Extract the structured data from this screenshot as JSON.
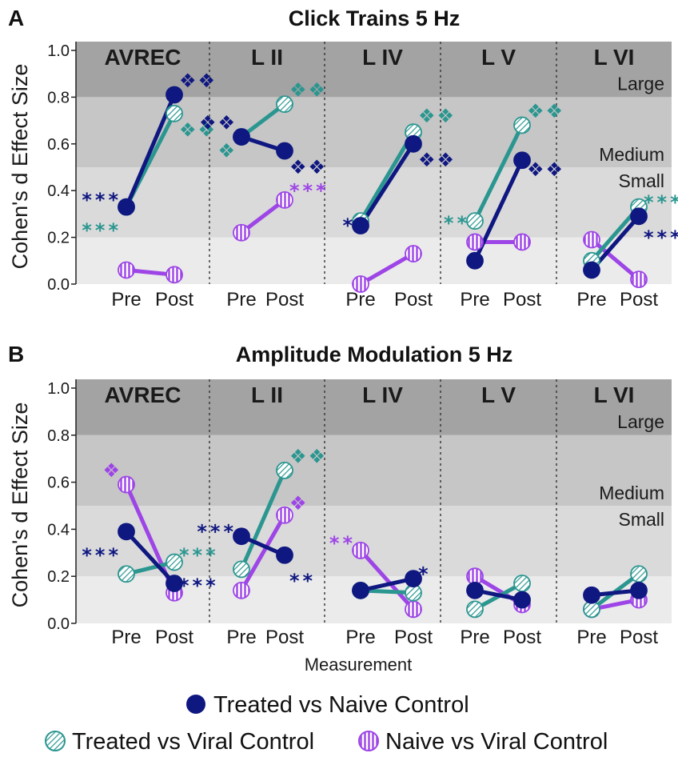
{
  "chart_data": [
    {
      "type": "line",
      "panel": "A",
      "title": "Click Trains 5 Hz",
      "ylabel": "Cohen's d Effect Size",
      "ylim": [
        0,
        1.0
      ],
      "yticks": [
        "0.0",
        "0.2",
        "0.4",
        "0.6",
        "0.8",
        "1.0"
      ],
      "x_categories": [
        "Pre",
        "Post"
      ],
      "bands": [
        {
          "label": "Large",
          "from": 0.8,
          "to": 1.05
        },
        {
          "label": "Medium",
          "from": 0.5,
          "to": 0.8
        },
        {
          "label": "Small",
          "from": 0.2,
          "to": 0.5
        }
      ],
      "groups": [
        {
          "label": "AVREC",
          "series": [
            {
              "name": "Treated vs Naive Control",
              "values": [
                0.33,
                0.81
              ]
            },
            {
              "name": "Treated vs Viral Control",
              "values": [
                0.33,
                0.73
              ]
            },
            {
              "name": "Naive vs Viral Control",
              "values": [
                0.06,
                0.04
              ]
            }
          ],
          "annotations": [
            {
              "text": "***",
              "series": 0,
              "at": "pre",
              "y": 0.38
            },
            {
              "text": "***",
              "series": 1,
              "at": "pre",
              "y": 0.25
            },
            {
              "text": "❖❖",
              "series": 0,
              "at": "post",
              "y": 0.87
            },
            {
              "text": "❖❖",
              "series": 1,
              "at": "post",
              "y": 0.66
            }
          ]
        },
        {
          "label": "L II",
          "series": [
            {
              "name": "Treated vs Naive Control",
              "values": [
                0.63,
                0.57
              ]
            },
            {
              "name": "Treated vs Viral Control",
              "values": [
                0.63,
                0.77
              ]
            },
            {
              "name": "Naive vs Viral Control",
              "values": [
                0.22,
                0.36
              ]
            }
          ],
          "annotations": [
            {
              "text": "❖❖",
              "series": 0,
              "at": "pre",
              "y": 0.69
            },
            {
              "text": "❖",
              "series": 1,
              "at": "pre",
              "y": 0.57
            },
            {
              "text": "❖❖",
              "series": 1,
              "at": "post",
              "y": 0.83
            },
            {
              "text": "❖❖",
              "series": 0,
              "at": "post",
              "y": 0.5
            },
            {
              "text": "***",
              "series": 2,
              "at": "post",
              "y": 0.42
            }
          ]
        },
        {
          "label": "L IV",
          "series": [
            {
              "name": "Treated vs Naive Control",
              "values": [
                0.25,
                0.6
              ]
            },
            {
              "name": "Treated vs Viral Control",
              "values": [
                0.27,
                0.65
              ]
            },
            {
              "name": "Naive vs Viral Control",
              "values": [
                0.0,
                0.13
              ]
            }
          ],
          "annotations": [
            {
              "text": "*",
              "series": 0,
              "at": "pre",
              "y": 0.27
            },
            {
              "text": "❖❖",
              "series": 1,
              "at": "post",
              "y": 0.72
            },
            {
              "text": "❖❖",
              "series": 0,
              "at": "post",
              "y": 0.53
            }
          ]
        },
        {
          "label": "L V",
          "series": [
            {
              "name": "Treated vs Naive Control",
              "values": [
                0.1,
                0.53
              ]
            },
            {
              "name": "Treated vs Viral Control",
              "values": [
                0.27,
                0.68
              ]
            },
            {
              "name": "Naive vs Viral Control",
              "values": [
                0.18,
                0.18
              ]
            }
          ],
          "annotations": [
            {
              "text": "**",
              "series": 1,
              "at": "pre",
              "y": 0.28
            },
            {
              "text": "❖❖",
              "series": 1,
              "at": "post",
              "y": 0.74
            },
            {
              "text": "❖❖",
              "series": 0,
              "at": "post",
              "y": 0.49
            }
          ]
        },
        {
          "label": "L VI",
          "series": [
            {
              "name": "Treated vs Naive Control",
              "values": [
                0.06,
                0.29
              ]
            },
            {
              "name": "Treated vs Viral Control",
              "values": [
                0.1,
                0.33
              ]
            },
            {
              "name": "Naive vs Viral Control",
              "values": [
                0.19,
                0.02
              ]
            }
          ],
          "annotations": [
            {
              "text": "***",
              "series": 1,
              "at": "post",
              "y": 0.37
            },
            {
              "text": "***",
              "series": 0,
              "at": "post",
              "y": 0.22
            }
          ]
        }
      ]
    },
    {
      "type": "line",
      "panel": "B",
      "title": "Amplitude Modulation 5 Hz",
      "ylabel": "Cohen's d Effect Size",
      "xlabel": "Measurement",
      "ylim": [
        0,
        1.0
      ],
      "yticks": [
        "0.0",
        "0.2",
        "0.4",
        "0.6",
        "0.8",
        "1.0"
      ],
      "x_categories": [
        "Pre",
        "Post"
      ],
      "bands": [
        {
          "label": "Large",
          "from": 0.8,
          "to": 1.05
        },
        {
          "label": "Medium",
          "from": 0.5,
          "to": 0.8
        },
        {
          "label": "Small",
          "from": 0.2,
          "to": 0.5
        }
      ],
      "groups": [
        {
          "label": "AVREC",
          "series": [
            {
              "name": "Treated vs Naive Control",
              "values": [
                0.39,
                0.17
              ]
            },
            {
              "name": "Treated vs Viral Control",
              "values": [
                0.21,
                0.26
              ]
            },
            {
              "name": "Naive vs Viral Control",
              "values": [
                0.59,
                0.13
              ]
            }
          ],
          "annotations": [
            {
              "text": "❖",
              "series": 2,
              "at": "pre",
              "y": 0.65
            },
            {
              "text": "***",
              "series": 0,
              "at": "pre",
              "y": 0.31
            },
            {
              "text": "***",
              "series": 1,
              "at": "post",
              "y": 0.31
            },
            {
              "text": "***",
              "series": 0,
              "at": "post",
              "y": 0.18
            }
          ]
        },
        {
          "label": "L II",
          "series": [
            {
              "name": "Treated vs Naive Control",
              "values": [
                0.37,
                0.29
              ]
            },
            {
              "name": "Treated vs Viral Control",
              "values": [
                0.23,
                0.65
              ]
            },
            {
              "name": "Naive vs Viral Control",
              "values": [
                0.14,
                0.46
              ]
            }
          ],
          "annotations": [
            {
              "text": "***",
              "series": 0,
              "at": "pre",
              "y": 0.41
            },
            {
              "text": "❖❖",
              "series": 1,
              "at": "post",
              "y": 0.71
            },
            {
              "text": "❖",
              "series": 2,
              "at": "post",
              "y": 0.51
            },
            {
              "text": "**",
              "series": 0,
              "at": "post",
              "y": 0.2
            }
          ]
        },
        {
          "label": "L IV",
          "series": [
            {
              "name": "Treated vs Naive Control",
              "values": [
                0.14,
                0.19
              ]
            },
            {
              "name": "Treated vs Viral Control",
              "values": [
                0.14,
                0.13
              ]
            },
            {
              "name": "Naive vs Viral Control",
              "values": [
                0.31,
                0.06
              ]
            }
          ],
          "annotations": [
            {
              "text": "**",
              "series": 2,
              "at": "pre",
              "y": 0.36
            },
            {
              "text": "*",
              "series": 0,
              "at": "post",
              "y": 0.23
            }
          ]
        },
        {
          "label": "L V",
          "series": [
            {
              "name": "Treated vs Naive Control",
              "values": [
                0.14,
                0.1
              ]
            },
            {
              "name": "Treated vs Viral Control",
              "values": [
                0.06,
                0.17
              ]
            },
            {
              "name": "Naive vs Viral Control",
              "values": [
                0.2,
                0.08
              ]
            }
          ],
          "annotations": []
        },
        {
          "label": "L VI",
          "series": [
            {
              "name": "Treated vs Naive Control",
              "values": [
                0.12,
                0.14
              ]
            },
            {
              "name": "Treated vs Viral Control",
              "values": [
                0.06,
                0.21
              ]
            },
            {
              "name": "Naive vs Viral Control",
              "values": [
                0.06,
                0.1
              ]
            }
          ],
          "annotations": []
        }
      ]
    }
  ],
  "legend": {
    "items": [
      {
        "label": "Treated vs Naive Control",
        "marker": "filled"
      },
      {
        "label": "Treated vs Viral Control",
        "marker": "diagonal-hatch"
      },
      {
        "label": "Naive vs Viral Control",
        "marker": "vertical-hatch"
      }
    ]
  },
  "colors": {
    "treated_vs_naive": "#0f1780",
    "treated_vs_viral": "#2b9690",
    "naive_vs_viral": "#9d45e6",
    "band_large": "#a3a3a3",
    "band_medium": "#c6c6c6",
    "band_small": "#dadada",
    "band_none": "#ebebeb"
  }
}
